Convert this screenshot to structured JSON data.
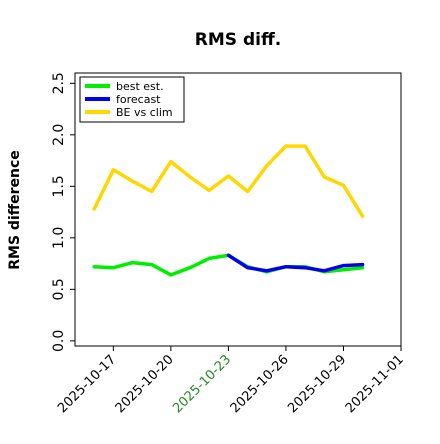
{
  "chart_data": {
    "type": "line",
    "title": "RMS diff.",
    "ylabel": "RMS difference",
    "xlabel": "",
    "ylim": [
      -0.05,
      2.6
    ],
    "yticks": [
      0.0,
      0.5,
      1.0,
      1.5,
      2.0,
      2.5
    ],
    "xlim": [
      "2025-10-15",
      "2025-11-01"
    ],
    "xticks": [
      {
        "date": "2025-10-17",
        "label": "2025-10-17",
        "color": "#000000"
      },
      {
        "date": "2025-10-20",
        "label": "2025-10-20",
        "color": "#000000"
      },
      {
        "date": "2025-10-23",
        "label": "2025-10-23",
        "color": "#228b22"
      },
      {
        "date": "2025-10-26",
        "label": "2025-10-26",
        "color": "#000000"
      },
      {
        "date": "2025-10-29",
        "label": "2025-10-29",
        "color": "#000000"
      },
      {
        "date": "2025-11-01",
        "label": "2025-11-01",
        "color": "#000000"
      }
    ],
    "grid": false,
    "legend_position": "top-left",
    "series": [
      {
        "name": "best est.",
        "color": "#00ee00",
        "points": [
          {
            "x": "2025-10-16",
            "y": 0.72
          },
          {
            "x": "2025-10-17",
            "y": 0.71
          },
          {
            "x": "2025-10-18",
            "y": 0.76
          },
          {
            "x": "2025-10-19",
            "y": 0.74
          },
          {
            "x": "2025-10-20",
            "y": 0.64
          },
          {
            "x": "2025-10-21",
            "y": 0.71
          },
          {
            "x": "2025-10-22",
            "y": 0.8
          },
          {
            "x": "2025-10-23",
            "y": 0.83
          },
          {
            "x": "2025-10-24",
            "y": 0.72
          },
          {
            "x": "2025-10-25",
            "y": 0.67
          },
          {
            "x": "2025-10-26",
            "y": 0.72
          },
          {
            "x": "2025-10-27",
            "y": 0.72
          },
          {
            "x": "2025-10-28",
            "y": 0.67
          },
          {
            "x": "2025-10-29",
            "y": 0.69
          },
          {
            "x": "2025-10-30",
            "y": 0.71
          }
        ]
      },
      {
        "name": "forecast",
        "color": "#0000ee",
        "points": [
          {
            "x": "2025-10-23",
            "y": 0.83
          },
          {
            "x": "2025-10-24",
            "y": 0.71
          },
          {
            "x": "2025-10-25",
            "y": 0.68
          },
          {
            "x": "2025-10-26",
            "y": 0.72
          },
          {
            "x": "2025-10-27",
            "y": 0.71
          },
          {
            "x": "2025-10-28",
            "y": 0.68
          },
          {
            "x": "2025-10-29",
            "y": 0.73
          },
          {
            "x": "2025-10-30",
            "y": 0.74
          }
        ]
      },
      {
        "name": "BE vs clim",
        "color": "#ffd700",
        "points": [
          {
            "x": "2025-10-16",
            "y": 1.28
          },
          {
            "x": "2025-10-17",
            "y": 1.66
          },
          {
            "x": "2025-10-18",
            "y": 1.55
          },
          {
            "x": "2025-10-19",
            "y": 1.45
          },
          {
            "x": "2025-10-20",
            "y": 1.74
          },
          {
            "x": "2025-10-21",
            "y": 1.59
          },
          {
            "x": "2025-10-22",
            "y": 1.46
          },
          {
            "x": "2025-10-23",
            "y": 1.6
          },
          {
            "x": "2025-10-24",
            "y": 1.45
          },
          {
            "x": "2025-10-25",
            "y": 1.7
          },
          {
            "x": "2025-10-26",
            "y": 1.89
          },
          {
            "x": "2025-10-27",
            "y": 1.89
          },
          {
            "x": "2025-10-28",
            "y": 1.59
          },
          {
            "x": "2025-10-29",
            "y": 1.51
          },
          {
            "x": "2025-10-30",
            "y": 1.21
          }
        ]
      }
    ]
  }
}
